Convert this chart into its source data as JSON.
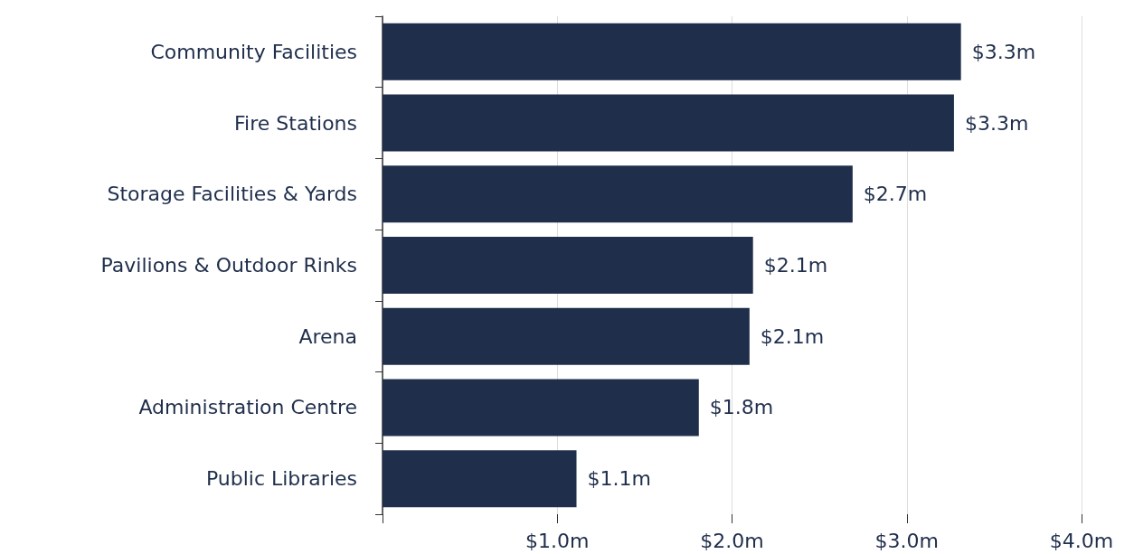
{
  "chart_data": {
    "type": "bar",
    "orientation": "horizontal",
    "categories": [
      "Community Facilities",
      "Fire Stations",
      "Storage Facilities & Yards",
      "Pavilions & Outdoor Rinks",
      "Arena",
      "Administration Centre",
      "Public Libraries"
    ],
    "values": [
      3.31,
      3.27,
      2.69,
      2.12,
      2.1,
      1.81,
      1.11
    ],
    "value_labels": [
      "$3.3m",
      "$3.3m",
      "$2.7m",
      "$2.1m",
      "$2.1m",
      "$1.8m",
      "$1.1m"
    ],
    "color": "#1f2e4b",
    "xlim": [
      0,
      4
    ],
    "xticks": [
      {
        "value": 0,
        "label": null
      },
      {
        "value": 1,
        "label": "$1.0m"
      },
      {
        "value": 2,
        "label": "$2.0m"
      },
      {
        "value": 3,
        "label": "$3.0m"
      },
      {
        "value": 4,
        "label": "$4.0m"
      }
    ],
    "grid": "x"
  }
}
